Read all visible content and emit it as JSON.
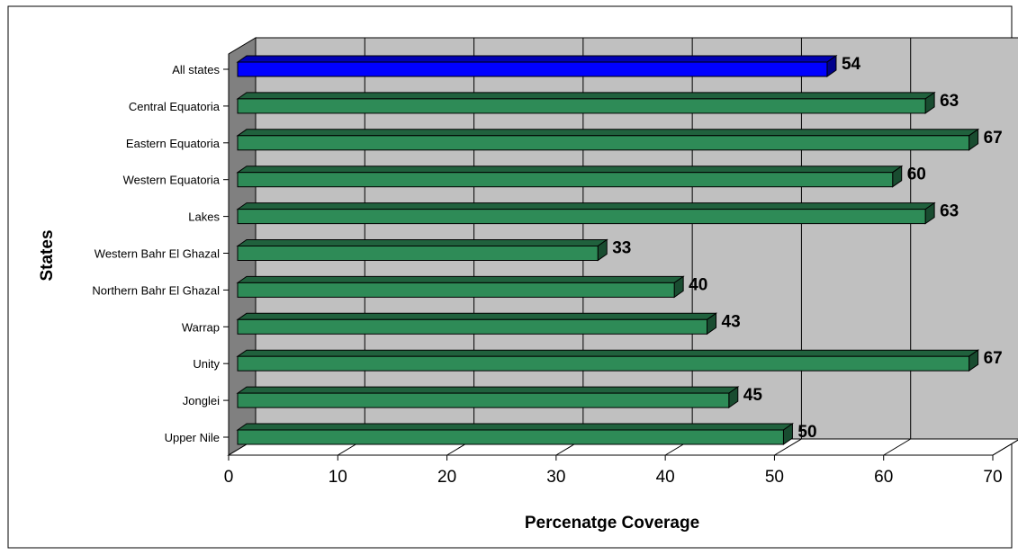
{
  "chart_data": {
    "type": "bar",
    "orientation": "horizontal",
    "three_d": true,
    "xlabel": "Percenatge Coverage",
    "ylabel": "States",
    "xlim": [
      0,
      70
    ],
    "xticks": [
      "0",
      "10",
      "20",
      "30",
      "40",
      "50",
      "60",
      "70"
    ],
    "grid": true,
    "legend": "none",
    "categories": [
      "All states",
      "Central Equatoria",
      "Eastern Equatoria",
      "Western Equatoria",
      "Lakes",
      "Western Bahr El Ghazal",
      "Northern Bahr El Ghazal",
      "Warrap",
      "Unity",
      "Jonglei",
      "Upper Nile"
    ],
    "values": [
      54,
      63,
      67,
      60,
      63,
      33,
      40,
      43,
      67,
      45,
      50
    ],
    "data_labels": [
      "54",
      "63",
      "67",
      "60",
      "63",
      "33",
      "40",
      "43",
      "67",
      "45",
      "50"
    ],
    "colors": {
      "highlight": "#0000ff",
      "bars": "#2e8b57",
      "wall": "#c0c0c0",
      "side_wall": "#808080"
    }
  }
}
